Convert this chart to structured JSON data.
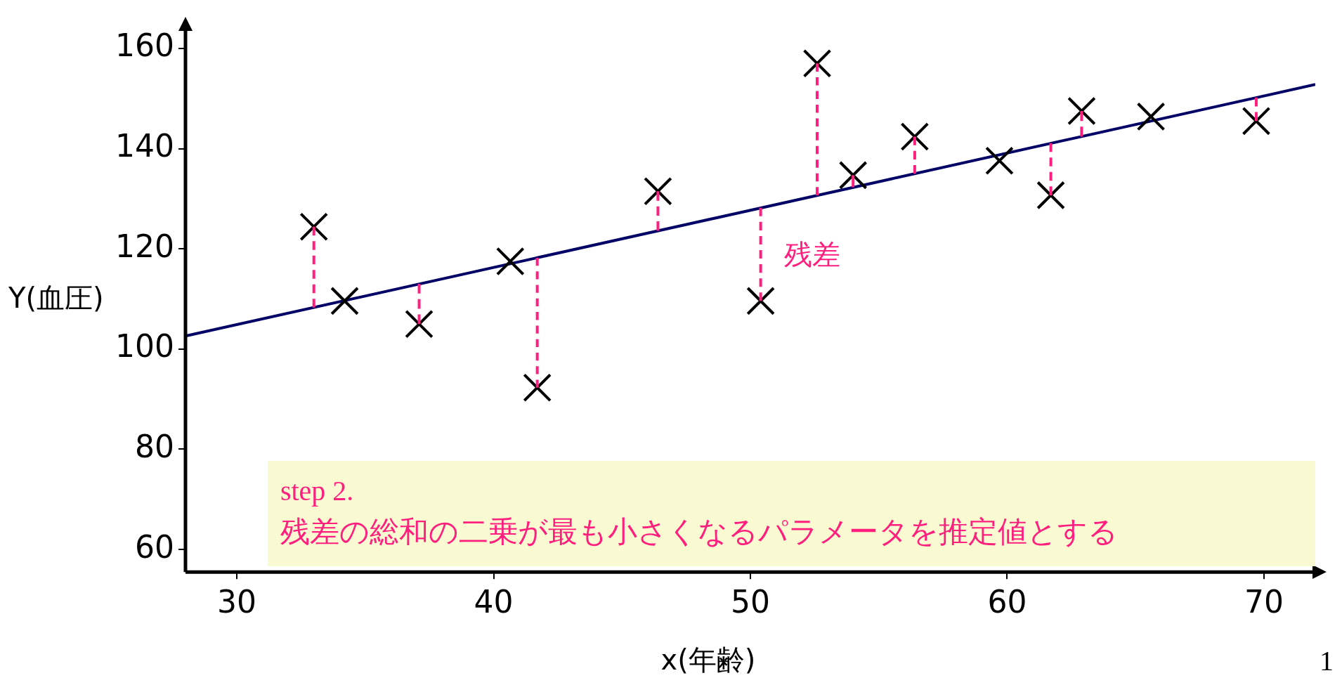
{
  "chart_data": {
    "type": "scatter",
    "xlabel": "x(年齢)",
    "ylabel": "Y(血圧)",
    "xlim": [
      28,
      72
    ],
    "ylim": [
      55.5,
      164
    ],
    "xticks": [
      30,
      40,
      50,
      60,
      70
    ],
    "yticks": [
      60,
      80,
      100,
      120,
      140,
      160
    ],
    "grid": false,
    "legend": false,
    "marker": "cross",
    "series": [
      {
        "type": "scatter",
        "color": "#000000",
        "x": [
          33.0,
          34.2,
          37.1,
          40.65,
          41.7,
          46.4,
          50.4,
          52.6,
          54.0,
          56.4,
          59.7,
          61.7,
          62.9,
          65.6,
          69.7
        ],
        "values": [
          124.4,
          109.6,
          105.0,
          117.5,
          92.3,
          131.5,
          109.6,
          157.0,
          134.7,
          142.4,
          137.6,
          130.7,
          147.5,
          146.4,
          145.5
        ],
        "errors": [
          [
            108.3,
            124.4
          ],
          null,
          [
            105.0,
            113.0
          ],
          null,
          [
            92.3,
            118.2
          ],
          [
            123.6,
            131.5
          ],
          [
            109.6,
            128.2
          ],
          [
            130.7,
            157.0
          ],
          [
            132.3,
            134.7
          ],
          [
            135.0,
            142.4
          ],
          null,
          [
            130.7,
            141.1
          ],
          [
            142.4,
            147.5
          ],
          null,
          [
            145.5,
            150.2
          ]
        ]
      },
      {
        "type": "line",
        "color": "#000066",
        "marker": "none",
        "x": [
          28,
          72
        ],
        "values": [
          102.6,
          152.8
        ]
      }
    ],
    "annotations": [
      "残差",
      "step 2.\n残差の総和の二乗が最も小さくなるパラメータを推定値とする",
      "1"
    ]
  }
}
